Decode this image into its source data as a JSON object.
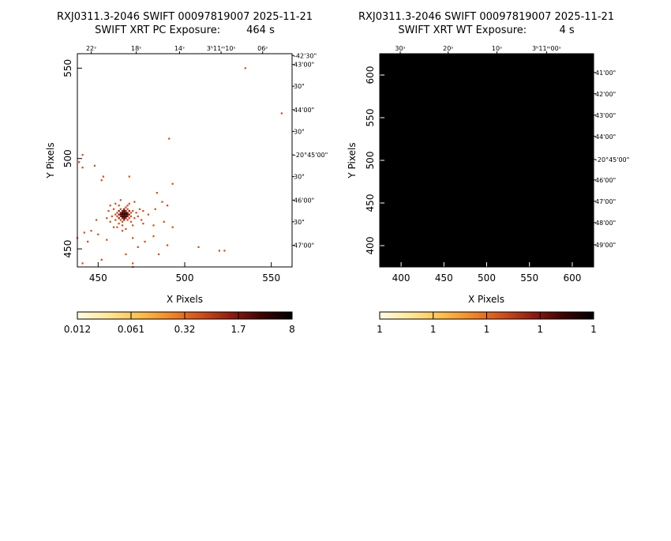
{
  "chart_data": [
    {
      "type": "heatmap",
      "title": "RXJ0311.3-2046 SWIFT 00097819007 2025-11-21",
      "subtitle": "SWIFT XRT PC Exposure:        464 s",
      "xlabel": "X Pixels",
      "ylabel": "Y Pixels",
      "xlim": [
        438,
        562
      ],
      "ylim": [
        440,
        558
      ],
      "x_ticks": [
        "450",
        "500",
        "550"
      ],
      "y_ticks": [
        "450",
        "500",
        "550"
      ],
      "x_tick_values": [
        450,
        500,
        550
      ],
      "y_tick_values": [
        450,
        500,
        550
      ],
      "ra_ticks": [
        "22ˢ",
        "18ˢ",
        "14ˢ",
        "3ʰ11ᵐ10ˢ",
        "06ˢ"
      ],
      "ra_tick_values": [
        446,
        472,
        497,
        521,
        545
      ],
      "dec_ticks": [
        "-42'30\"",
        "43'00\"",
        "30\"",
        "44'00\"",
        "30\"",
        "-20°45'00\"",
        "30\"",
        "46'00\"",
        "30\"",
        "47'00\""
      ],
      "dec_tick_values": [
        557,
        552,
        540,
        527,
        515,
        502,
        490,
        477,
        465,
        452
      ],
      "background": "#ffffff",
      "source_events": [
        {
          "x": 465,
          "y": 469,
          "v": 8
        },
        {
          "x": 464,
          "y": 469,
          "v": 5
        },
        {
          "x": 466,
          "y": 469,
          "v": 5
        },
        {
          "x": 465,
          "y": 470,
          "v": 5
        },
        {
          "x": 465,
          "y": 468,
          "v": 5
        },
        {
          "x": 464,
          "y": 470,
          "v": 3
        },
        {
          "x": 466,
          "y": 470,
          "v": 3
        },
        {
          "x": 464,
          "y": 468,
          "v": 3
        },
        {
          "x": 466,
          "y": 468,
          "v": 2
        },
        {
          "x": 463,
          "y": 469,
          "v": 2
        },
        {
          "x": 467,
          "y": 469,
          "v": 2
        },
        {
          "x": 465,
          "y": 471,
          "v": 2
        },
        {
          "x": 465,
          "y": 467,
          "v": 2
        },
        {
          "x": 463,
          "y": 470,
          "v": 1.7
        },
        {
          "x": 467,
          "y": 470,
          "v": 1.7
        },
        {
          "x": 463,
          "y": 468,
          "v": 1.5
        },
        {
          "x": 467,
          "y": 468,
          "v": 1.5
        },
        {
          "x": 464,
          "y": 471,
          "v": 1.2
        },
        {
          "x": 466,
          "y": 471,
          "v": 1.2
        },
        {
          "x": 464,
          "y": 467,
          "v": 1.2
        },
        {
          "x": 466,
          "y": 467,
          "v": 1
        },
        {
          "x": 462,
          "y": 469,
          "v": 1
        },
        {
          "x": 468,
          "y": 469,
          "v": 1
        },
        {
          "x": 465,
          "y": 472,
          "v": 1
        },
        {
          "x": 465,
          "y": 466,
          "v": 1
        },
        {
          "x": 462,
          "y": 471,
          "v": 0.8
        },
        {
          "x": 468,
          "y": 471,
          "v": 0.8
        },
        {
          "x": 462,
          "y": 467,
          "v": 0.8
        },
        {
          "x": 468,
          "y": 467,
          "v": 0.7
        },
        {
          "x": 463,
          "y": 472,
          "v": 0.7
        },
        {
          "x": 467,
          "y": 472,
          "v": 0.7
        },
        {
          "x": 463,
          "y": 466,
          "v": 0.7
        },
        {
          "x": 467,
          "y": 466,
          "v": 0.6
        },
        {
          "x": 461,
          "y": 470,
          "v": 0.6
        },
        {
          "x": 469,
          "y": 470,
          "v": 0.6
        },
        {
          "x": 461,
          "y": 468,
          "v": 0.6
        },
        {
          "x": 469,
          "y": 468,
          "v": 0.5
        },
        {
          "x": 466,
          "y": 473,
          "v": 0.5
        },
        {
          "x": 464,
          "y": 465,
          "v": 0.5
        },
        {
          "x": 460,
          "y": 469,
          "v": 0.5
        },
        {
          "x": 470,
          "y": 471,
          "v": 0.5
        },
        {
          "x": 462,
          "y": 474,
          "v": 0.5
        },
        {
          "x": 467,
          "y": 474,
          "v": 0.5
        },
        {
          "x": 460,
          "y": 466,
          "v": 0.5
        },
        {
          "x": 469,
          "y": 465,
          "v": 0.5
        },
        {
          "x": 464,
          "y": 463,
          "v": 0.5
        },
        {
          "x": 471,
          "y": 467,
          "v": 0.5
        },
        {
          "x": 459,
          "y": 472,
          "v": 0.5
        },
        {
          "x": 462,
          "y": 464,
          "v": 0.5
        },
        {
          "x": 468,
          "y": 475,
          "v": 0.5
        },
        {
          "x": 458,
          "y": 468,
          "v": 0.5
        },
        {
          "x": 472,
          "y": 470,
          "v": 0.5
        },
        {
          "x": 460,
          "y": 475,
          "v": 0.5
        },
        {
          "x": 470,
          "y": 463,
          "v": 0.5
        },
        {
          "x": 461,
          "y": 462,
          "v": 0.5
        },
        {
          "x": 473,
          "y": 468,
          "v": 0.5
        },
        {
          "x": 457,
          "y": 465,
          "v": 0.5
        },
        {
          "x": 466,
          "y": 461,
          "v": 0.5
        },
        {
          "x": 463,
          "y": 477,
          "v": 0.5
        },
        {
          "x": 474,
          "y": 472,
          "v": 0.5
        },
        {
          "x": 456,
          "y": 471,
          "v": 0.5
        },
        {
          "x": 459,
          "y": 462,
          "v": 0.5
        },
        {
          "x": 471,
          "y": 476,
          "v": 0.5
        },
        {
          "x": 475,
          "y": 466,
          "v": 0.5
        },
        {
          "x": 455,
          "y": 467,
          "v": 0.5
        },
        {
          "x": 464,
          "y": 460,
          "v": 0.5
        },
        {
          "x": 476,
          "y": 464,
          "v": 0.5
        },
        {
          "x": 457,
          "y": 474,
          "v": 0.5
        }
      ],
      "background_events": [
        {
          "x": 535,
          "y": 550,
          "v": 0.5
        },
        {
          "x": 556,
          "y": 525,
          "v": 0.5
        },
        {
          "x": 491,
          "y": 511,
          "v": 0.5
        },
        {
          "x": 441,
          "y": 502,
          "v": 0.5
        },
        {
          "x": 439,
          "y": 498,
          "v": 0.5
        },
        {
          "x": 441,
          "y": 495,
          "v": 0.5
        },
        {
          "x": 448,
          "y": 496,
          "v": 0.5
        },
        {
          "x": 453,
          "y": 490,
          "v": 0.5
        },
        {
          "x": 452,
          "y": 488,
          "v": 0.5
        },
        {
          "x": 468,
          "y": 490,
          "v": 0.5
        },
        {
          "x": 493,
          "y": 486,
          "v": 0.5
        },
        {
          "x": 484,
          "y": 481,
          "v": 0.5
        },
        {
          "x": 487,
          "y": 476,
          "v": 0.5
        },
        {
          "x": 490,
          "y": 474,
          "v": 0.5
        },
        {
          "x": 483,
          "y": 472,
          "v": 0.5
        },
        {
          "x": 476,
          "y": 471,
          "v": 0.5
        },
        {
          "x": 479,
          "y": 469,
          "v": 0.5
        },
        {
          "x": 488,
          "y": 465,
          "v": 0.5
        },
        {
          "x": 482,
          "y": 463,
          "v": 0.5
        },
        {
          "x": 493,
          "y": 462,
          "v": 0.5
        },
        {
          "x": 449,
          "y": 466,
          "v": 0.5
        },
        {
          "x": 446,
          "y": 460,
          "v": 0.5
        },
        {
          "x": 442,
          "y": 459,
          "v": 0.5
        },
        {
          "x": 450,
          "y": 458,
          "v": 0.5
        },
        {
          "x": 438,
          "y": 456,
          "v": 0.5
        },
        {
          "x": 444,
          "y": 454,
          "v": 0.5
        },
        {
          "x": 455,
          "y": 455,
          "v": 0.5
        },
        {
          "x": 470,
          "y": 456,
          "v": 0.5
        },
        {
          "x": 477,
          "y": 454,
          "v": 0.5
        },
        {
          "x": 482,
          "y": 457,
          "v": 0.5
        },
        {
          "x": 473,
          "y": 451,
          "v": 0.5
        },
        {
          "x": 466,
          "y": 447,
          "v": 0.5
        },
        {
          "x": 485,
          "y": 447,
          "v": 0.5
        },
        {
          "x": 490,
          "y": 452,
          "v": 0.5
        },
        {
          "x": 508,
          "y": 451,
          "v": 0.5
        },
        {
          "x": 523,
          "y": 449,
          "v": 0.5
        },
        {
          "x": 520,
          "y": 449,
          "v": 0.5
        },
        {
          "x": 452,
          "y": 444,
          "v": 0.5
        },
        {
          "x": 470,
          "y": 442,
          "v": 0.5
        },
        {
          "x": 470,
          "y": 440,
          "v": 0.5
        },
        {
          "x": 441,
          "y": 442,
          "v": 0.5
        }
      ],
      "colorbar": {
        "labels": [
          "0.012",
          "0.061",
          "0.32",
          "1.7",
          "8"
        ],
        "colors": [
          "#fffbe3",
          "#ffe89a",
          "#fdc14e",
          "#f2892a",
          "#d1501b",
          "#8f1d12",
          "#3d0403",
          "#000000"
        ]
      }
    },
    {
      "type": "heatmap",
      "title": "RXJ0311.3-2046 SWIFT 00097819007 2025-11-21",
      "subtitle": "SWIFT XRT WT Exposure:          4 s",
      "xlabel": "X Pixels",
      "ylabel": "Y Pixels",
      "xlim": [
        375,
        625
      ],
      "ylim": [
        375,
        625
      ],
      "x_ticks": [
        "400",
        "450",
        "500",
        "550",
        "600"
      ],
      "y_ticks": [
        "400",
        "450",
        "500",
        "550",
        "600"
      ],
      "x_tick_values": [
        400,
        450,
        500,
        550,
        600
      ],
      "y_tick_values": [
        400,
        450,
        500,
        550,
        600
      ],
      "ra_ticks": [
        "30ˢ",
        "20ˢ",
        "10ˢ",
        "3ʰ11ᵐ00ˢ"
      ],
      "ra_tick_values": [
        399,
        455,
        512,
        570
      ],
      "dec_ticks": [
        "41'00\"",
        "42'00\"",
        "43'00\"",
        "44'00\"",
        "-20°45'00\"",
        "46'00\"",
        "47'00\"",
        "48'00\"",
        "49'00\""
      ],
      "dec_tick_values": [
        603,
        578,
        553,
        528,
        501,
        477,
        452,
        427,
        401
      ],
      "background": "#000000",
      "colorbar": {
        "labels": [
          "1",
          "1",
          "1",
          "1",
          "1"
        ],
        "colors": [
          "#fffbe3",
          "#ffe89a",
          "#fdc14e",
          "#f2892a",
          "#d1501b",
          "#8f1d12",
          "#3d0403",
          "#000000"
        ]
      }
    }
  ]
}
